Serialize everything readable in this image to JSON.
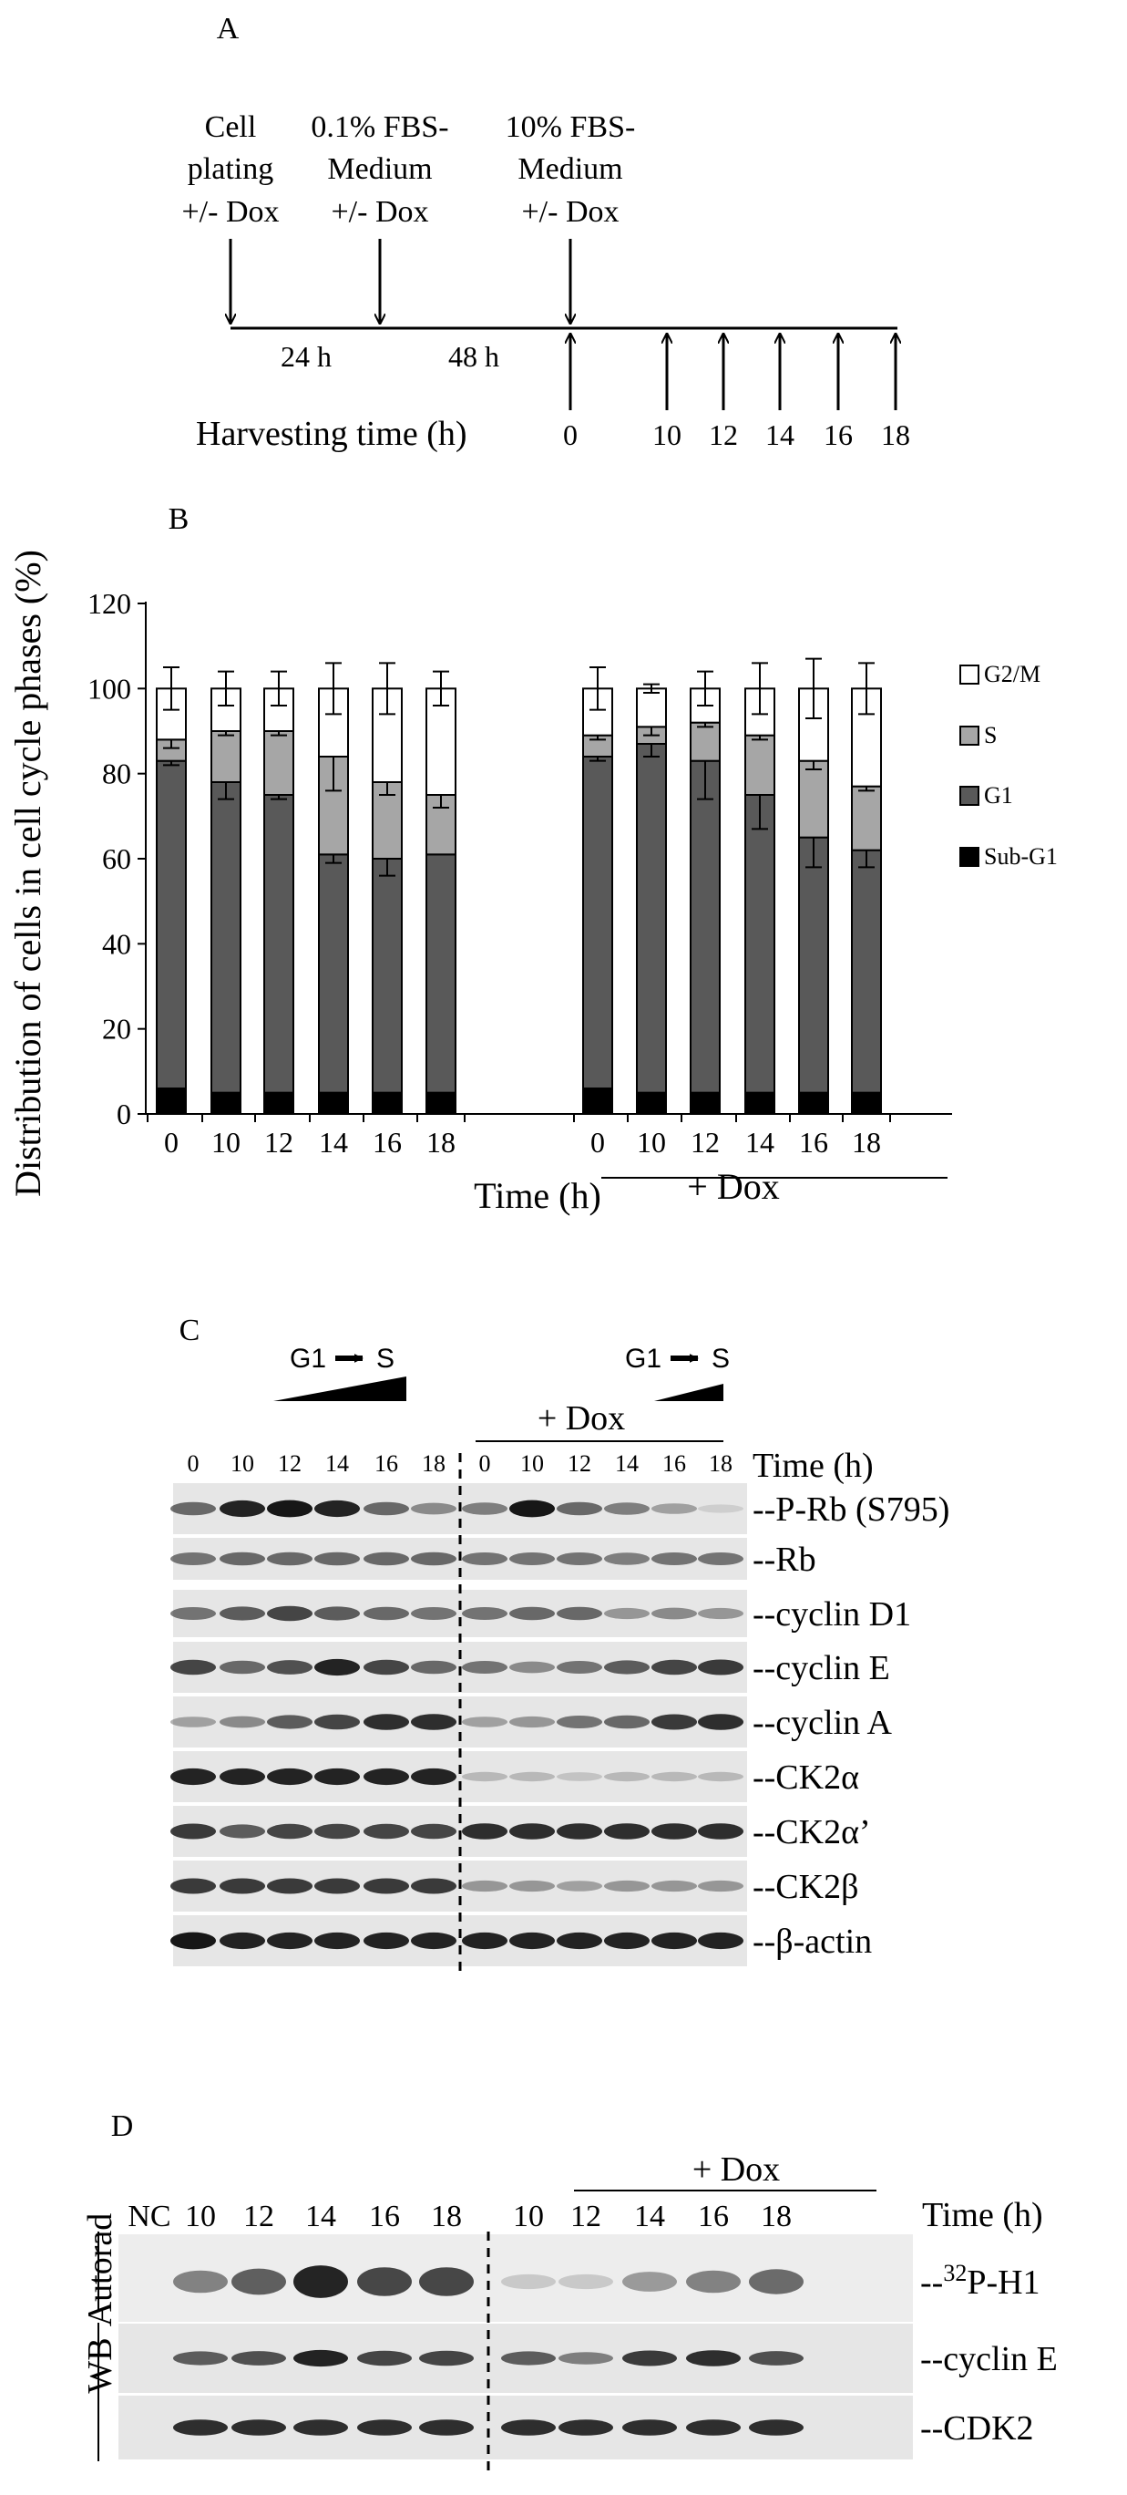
{
  "panels": {
    "a": "A",
    "b": "B",
    "c": "C",
    "d": "D"
  },
  "timeline": {
    "events": [
      {
        "lines": [
          "Cell",
          "plating",
          "+/- Dox"
        ]
      },
      {
        "lines": [
          "0.1% FBS-",
          "Medium",
          "+/- Dox"
        ]
      },
      {
        "lines": [
          "10% FBS-",
          "Medium",
          "+/- Dox"
        ]
      }
    ],
    "intervals": [
      "24 h",
      "48 h"
    ],
    "harvest_label": "Harvesting time (h)",
    "harvest_times": [
      "0",
      "10",
      "12",
      "14",
      "16",
      "18"
    ]
  },
  "chart_data": {
    "type": "bar",
    "stacked": true,
    "ylabel": "Distribution of cells in cell cycle phases (%)",
    "xlabel": "Time (h)",
    "group_labels": [
      "",
      "+ Dox"
    ],
    "categories": [
      "0",
      "10",
      "12",
      "14",
      "16",
      "18",
      "0",
      "10",
      "12",
      "14",
      "16",
      "18"
    ],
    "ylim": [
      0,
      120
    ],
    "yticks": [
      "0",
      "20",
      "40",
      "60",
      "80",
      "100",
      "120"
    ],
    "legend_position": "right",
    "series": [
      {
        "name": "Sub-G1",
        "color": "#000000",
        "values": [
          6,
          5,
          5,
          5,
          5,
          5,
          6,
          5,
          5,
          5,
          5,
          5
        ],
        "err": [
          5,
          5,
          4,
          4,
          4,
          5,
          5,
          4,
          4,
          4,
          4,
          4
        ]
      },
      {
        "name": "G1",
        "color": "#595959",
        "values": [
          77,
          73,
          70,
          56,
          55,
          56,
          78,
          82,
          78,
          70,
          60,
          57
        ],
        "err": [
          1,
          4,
          1,
          2,
          4,
          0,
          1,
          3,
          9,
          8,
          7,
          4
        ]
      },
      {
        "name": "S",
        "color": "#a6a6a6",
        "values": [
          5,
          12,
          15,
          23,
          18,
          14,
          5,
          4,
          9,
          14,
          18,
          15
        ],
        "err": [
          2,
          1,
          1,
          8,
          3,
          3,
          1,
          2,
          1,
          1,
          2,
          1
        ]
      },
      {
        "name": "G2/M",
        "color": "#ffffff",
        "values": [
          12,
          10,
          10,
          16,
          22,
          25,
          11,
          9,
          8,
          11,
          17,
          23
        ],
        "err": [
          5,
          4,
          4,
          6,
          6,
          4,
          5,
          1,
          4,
          6,
          7,
          6
        ]
      }
    ]
  },
  "blot_c": {
    "arrow_label": "G1",
    "arrow_target": "S",
    "dox_label": "+ Dox",
    "time_label": "Time (h)",
    "lane_labels": [
      "0",
      "10",
      "12",
      "14",
      "16",
      "18",
      "0",
      "10",
      "12",
      "14",
      "16",
      "18"
    ],
    "rows": [
      {
        "label": "--P-Rb (S795)",
        "intensities": [
          0.55,
          0.85,
          0.9,
          0.85,
          0.55,
          0.4,
          0.45,
          0.9,
          0.55,
          0.45,
          0.3,
          0.1
        ]
      },
      {
        "label": "--Rb",
        "intensities": [
          0.5,
          0.55,
          0.55,
          0.55,
          0.55,
          0.55,
          0.5,
          0.5,
          0.5,
          0.45,
          0.5,
          0.5
        ]
      },
      {
        "label": "--cyclin D1",
        "intensities": [
          0.5,
          0.6,
          0.7,
          0.6,
          0.55,
          0.5,
          0.5,
          0.55,
          0.55,
          0.35,
          0.4,
          0.35
        ]
      },
      {
        "label": "--cyclin E",
        "intensities": [
          0.7,
          0.55,
          0.65,
          0.85,
          0.7,
          0.55,
          0.5,
          0.4,
          0.5,
          0.6,
          0.7,
          0.75
        ]
      },
      {
        "label": "--cyclin A",
        "intensities": [
          0.3,
          0.4,
          0.6,
          0.7,
          0.8,
          0.8,
          0.3,
          0.35,
          0.5,
          0.55,
          0.75,
          0.8
        ]
      },
      {
        "label": "--CK2α",
        "intensities": [
          0.85,
          0.85,
          0.85,
          0.85,
          0.85,
          0.85,
          0.2,
          0.2,
          0.15,
          0.2,
          0.2,
          0.2
        ]
      },
      {
        "label": "--CK2α’",
        "intensities": [
          0.75,
          0.6,
          0.7,
          0.7,
          0.7,
          0.7,
          0.8,
          0.8,
          0.8,
          0.8,
          0.8,
          0.8
        ]
      },
      {
        "label": "--CK2β",
        "intensities": [
          0.75,
          0.75,
          0.75,
          0.75,
          0.75,
          0.75,
          0.35,
          0.35,
          0.3,
          0.35,
          0.35,
          0.35
        ]
      },
      {
        "label": "--β-actin",
        "intensities": [
          0.9,
          0.85,
          0.85,
          0.85,
          0.85,
          0.85,
          0.85,
          0.85,
          0.85,
          0.85,
          0.85,
          0.85
        ]
      }
    ]
  },
  "blot_d": {
    "dox_label": "+ Dox",
    "time_label": "Time (h)",
    "lane_labels": [
      "NC",
      "10",
      "12",
      "14",
      "16",
      "18",
      "10",
      "12",
      "14",
      "16",
      "18"
    ],
    "side_labels": [
      "Autorad",
      "WB"
    ],
    "rows": [
      {
        "label_prefix": "--",
        "label_sup": "32",
        "label": "P-H1",
        "intensities": [
          0,
          0.45,
          0.6,
          0.85,
          0.7,
          0.7,
          0.15,
          0.15,
          0.35,
          0.45,
          0.55
        ]
      },
      {
        "label_prefix": "",
        "label_sup": "",
        "label": "--cyclin E",
        "intensities": [
          0,
          0.6,
          0.65,
          0.85,
          0.7,
          0.7,
          0.6,
          0.45,
          0.75,
          0.8,
          0.65
        ]
      },
      {
        "label_prefix": "",
        "label_sup": "",
        "label": "--CDK2",
        "intensities": [
          0,
          0.8,
          0.8,
          0.8,
          0.8,
          0.8,
          0.8,
          0.8,
          0.8,
          0.8,
          0.8
        ]
      }
    ]
  }
}
